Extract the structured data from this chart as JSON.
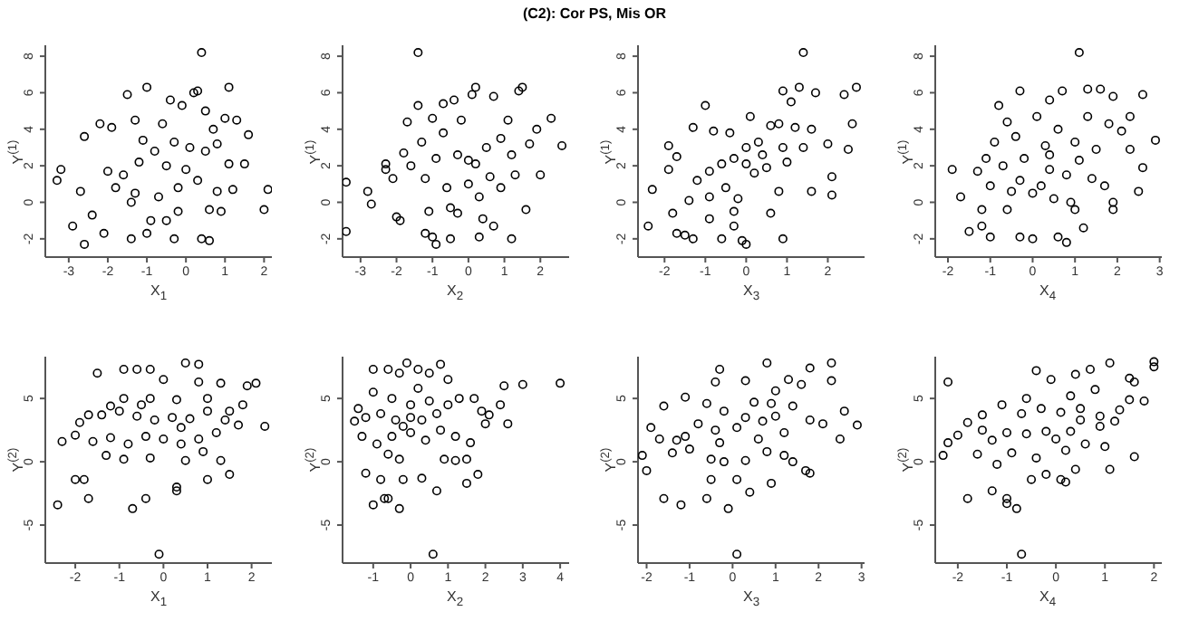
{
  "chart_data": [
    {
      "type": "scatter",
      "xlabel": "X$_{1}$",
      "ylabel": "Y$^{(1)}$",
      "color": "#000000",
      "marker": "circle",
      "xlim": [
        -3.6,
        2.2
      ],
      "xticks": [
        -3,
        -2,
        -1,
        0,
        1,
        2
      ],
      "ylim": [
        -3,
        8.6
      ],
      "yticks": [
        -2,
        0,
        2,
        4,
        6,
        8
      ],
      "x": [
        0.4,
        -1.5,
        -1.0,
        1.1,
        0.2,
        0.3,
        -0.4,
        -0.1,
        -2.2,
        -2.6,
        -1.9,
        -3.2,
        -3.3,
        -2.7,
        -2.9,
        -2.4,
        -2.6,
        -2.1,
        -1.4,
        -1.0,
        -0.3,
        0.4,
        0.6,
        2.0,
        2.1,
        1.6,
        1.5,
        1.0,
        0.8,
        0.5,
        0.1,
        -0.3,
        -0.8,
        -1.2,
        -1.6,
        -2.0,
        -1.8,
        -1.3,
        -0.7,
        -0.2,
        0.3,
        0.8,
        1.2,
        0.6,
        -0.5,
        -0.9,
        -0.6,
        0.7,
        -1.1,
        0.0,
        -0.5,
        1.1,
        0.9,
        -1.4,
        -0.2,
        0.5,
        -1.3,
        1.3
      ],
      "values": [
        8.2,
        5.9,
        6.3,
        6.3,
        6.0,
        6.1,
        5.6,
        5.3,
        4.3,
        3.6,
        4.1,
        1.8,
        1.2,
        0.6,
        -1.3,
        -0.7,
        -2.3,
        -1.7,
        -2.0,
        -1.7,
        -2.0,
        -2.0,
        -2.1,
        -0.4,
        0.7,
        3.7,
        2.1,
        4.6,
        3.2,
        2.8,
        3.0,
        3.3,
        2.8,
        2.2,
        1.5,
        1.7,
        0.8,
        0.5,
        0.3,
        0.8,
        1.2,
        0.6,
        0.7,
        -0.4,
        -1.0,
        -1.0,
        4.3,
        4.0,
        3.4,
        1.8,
        2.0,
        2.1,
        -0.5,
        0.0,
        -0.5,
        5.0,
        4.5,
        4.5
      ]
    },
    {
      "type": "scatter",
      "title": "(C2): Cor PS, Mis OR",
      "xlabel": "X$_{2}$",
      "ylabel": "Y$^{(1)}$",
      "color": "#000000",
      "marker": "circle",
      "xlim": [
        -3.5,
        2.8
      ],
      "xticks": [
        -3,
        -2,
        -1,
        0,
        1,
        2
      ],
      "ylim": [
        -3,
        8.6
      ],
      "yticks": [
        -2,
        0,
        2,
        4,
        6,
        8
      ],
      "x": [
        -1.4,
        -3.4,
        -3.4,
        -2.8,
        -2.7,
        -2.3,
        -2.3,
        -2.0,
        -1.9,
        -1.7,
        -1.4,
        -1.2,
        -1.0,
        -0.9,
        -0.5,
        0.3,
        1.2,
        1.6,
        2.0,
        2.3,
        2.6,
        1.5,
        1.4,
        0.2,
        0.1,
        0.7,
        -0.7,
        -0.4,
        -1.0,
        -0.2,
        1.1,
        1.9,
        1.7,
        0.5,
        -0.3,
        -0.9,
        -1.6,
        -1.2,
        -0.6,
        0.0,
        0.6,
        1.3,
        0.9,
        0.3,
        -0.5,
        -1.1,
        0.7,
        0.4,
        -1.3,
        0.9,
        0.0,
        -0.7,
        1.2,
        -1.8,
        -2.1,
        0.2,
        -0.3
      ],
      "values": [
        8.2,
        1.1,
        -1.6,
        0.6,
        -0.1,
        1.8,
        2.1,
        -0.8,
        -1.0,
        4.4,
        5.3,
        -1.7,
        -1.9,
        -2.3,
        -2.0,
        -1.9,
        -2.0,
        -0.4,
        1.5,
        4.6,
        3.1,
        6.3,
        6.1,
        6.3,
        5.9,
        5.8,
        5.4,
        5.6,
        4.6,
        4.5,
        4.5,
        4.0,
        3.2,
        3.0,
        2.6,
        2.4,
        2.0,
        1.3,
        0.8,
        1.0,
        1.4,
        1.5,
        0.8,
        0.3,
        -0.3,
        -0.5,
        -1.3,
        -0.9,
        3.3,
        3.5,
        2.3,
        3.8,
        2.6,
        2.7,
        1.3,
        2.1,
        -0.6
      ]
    },
    {
      "type": "scatter",
      "xlabel": "X$_{3}$",
      "ylabel": "Y$^{(1)}$",
      "color": "#000000",
      "marker": "circle",
      "xlim": [
        -2.65,
        2.9
      ],
      "xticks": [
        -2,
        -1,
        0,
        1,
        2
      ],
      "ylim": [
        -3,
        8.6
      ],
      "yticks": [
        -2,
        0,
        2,
        4,
        6,
        8
      ],
      "x": [
        1.4,
        -2.4,
        -2.3,
        -1.7,
        -1.8,
        -1.5,
        -1.3,
        -0.9,
        -0.6,
        -0.3,
        0.0,
        -0.1,
        0.9,
        -1.0,
        -1.3,
        -1.9,
        -1.7,
        -1.9,
        0.9,
        1.3,
        1.7,
        2.4,
        2.7,
        2.6,
        2.5,
        2.0,
        2.1,
        2.1,
        1.6,
        0.8,
        0.6,
        1.1,
        1.2,
        1.6,
        0.8,
        0.6,
        0.3,
        0.0,
        -0.3,
        -0.6,
        -0.9,
        -1.2,
        -0.9,
        -0.5,
        -0.2,
        0.2,
        0.5,
        1.0,
        1.4,
        -0.4,
        -0.8,
        0.1,
        -1.4,
        -0.3,
        0.4,
        0.9,
        0.0
      ],
      "values": [
        8.2,
        -1.3,
        0.7,
        -1.7,
        -0.6,
        -1.8,
        -2.0,
        -0.9,
        -2.0,
        -1.3,
        -2.3,
        -2.1,
        -2.0,
        5.3,
        4.1,
        3.1,
        2.5,
        1.8,
        6.1,
        6.3,
        6.0,
        5.9,
        6.3,
        4.3,
        2.9,
        3.2,
        1.4,
        0.4,
        0.6,
        0.6,
        -0.6,
        5.5,
        4.1,
        4.0,
        4.3,
        4.2,
        3.3,
        3.0,
        2.4,
        2.1,
        1.7,
        1.2,
        0.3,
        0.8,
        0.2,
        1.6,
        1.9,
        2.2,
        3.0,
        3.8,
        3.9,
        4.7,
        0.1,
        -0.5,
        2.6,
        3.0,
        2.1
      ]
    },
    {
      "type": "scatter",
      "xlabel": "X$_{4}$",
      "ylabel": "Y$^{(1)}$",
      "color": "#000000",
      "marker": "circle",
      "xlim": [
        -2.3,
        3.05
      ],
      "xticks": [
        -2,
        -1,
        0,
        1,
        2,
        3
      ],
      "ylim": [
        -3,
        8.6
      ],
      "yticks": [
        -2,
        0,
        2,
        4,
        6,
        8
      ],
      "x": [
        1.1,
        -1.9,
        -1.7,
        -1.5,
        -1.2,
        -1.0,
        -0.3,
        0.0,
        0.6,
        0.8,
        1.2,
        -0.3,
        -0.8,
        0.4,
        0.7,
        1.3,
        1.6,
        1.9,
        2.6,
        2.9,
        2.6,
        2.5,
        1.9,
        1.9,
        1.0,
        0.5,
        0.0,
        -0.5,
        -1.0,
        -1.3,
        -1.2,
        -0.6,
        -0.9,
        -0.6,
        0.1,
        0.6,
        1.3,
        1.8,
        2.3,
        2.1,
        2.3,
        1.5,
        1.0,
        0.3,
        -0.2,
        0.4,
        0.8,
        1.4,
        0.2,
        -0.3,
        -0.7,
        -1.1,
        1.7,
        0.9,
        0.4,
        -0.4,
        1.1
      ],
      "values": [
        8.2,
        1.8,
        0.3,
        -1.6,
        -1.3,
        -1.9,
        -1.9,
        -2.0,
        -1.9,
        -2.2,
        -1.4,
        6.1,
        5.3,
        5.6,
        6.1,
        6.2,
        6.2,
        5.8,
        5.9,
        3.4,
        1.9,
        0.6,
        -0.4,
        0.0,
        -0.4,
        0.2,
        0.5,
        0.6,
        0.9,
        1.7,
        -0.4,
        -0.4,
        3.3,
        4.4,
        4.7,
        4.0,
        4.7,
        4.3,
        4.7,
        3.9,
        2.9,
        2.9,
        3.3,
        3.1,
        2.4,
        1.8,
        1.5,
        1.3,
        0.9,
        1.2,
        2.0,
        2.4,
        0.9,
        0.0,
        2.6,
        3.6,
        2.3
      ]
    },
    {
      "type": "scatter",
      "xlabel": "X$_{1}$",
      "ylabel": "Y$^{(2)}$",
      "color": "#000000",
      "marker": "circle",
      "xlim": [
        -2.68,
        2.46
      ],
      "xticks": [
        -2,
        -1,
        0,
        1,
        2
      ],
      "ylim": [
        -8,
        8.3
      ],
      "yticks": [
        -5,
        0,
        5
      ],
      "x": [
        -0.1,
        -0.7,
        -2.4,
        -1.7,
        -0.4,
        0.3,
        0.3,
        -2.0,
        -1.8,
        1.5,
        1.0,
        -2.3,
        -1.5,
        -0.9,
        -0.6,
        -0.3,
        0.5,
        0.8,
        0.0,
        0.8,
        1.3,
        1.9,
        2.1,
        2.3,
        1.8,
        1.7,
        1.4,
        1.0,
        0.6,
        0.2,
        -0.2,
        -0.6,
        -1.0,
        -1.4,
        -1.7,
        -1.9,
        -2.0,
        -1.6,
        -1.2,
        -0.8,
        -0.4,
        0.0,
        0.4,
        0.8,
        1.2,
        0.9,
        0.5,
        -0.3,
        -0.9,
        -1.3,
        1.3,
        -0.9,
        -0.3,
        0.3,
        1.0,
        -1.2,
        0.4,
        -0.5,
        1.5
      ],
      "values": [
        -7.3,
        -3.7,
        -3.4,
        -2.9,
        -2.9,
        -2.0,
        -2.3,
        -1.4,
        -1.4,
        -1.0,
        -1.4,
        1.6,
        7.0,
        7.3,
        7.3,
        7.3,
        7.8,
        7.7,
        6.5,
        6.3,
        6.2,
        6.0,
        6.2,
        2.8,
        4.5,
        2.9,
        3.3,
        4.0,
        3.4,
        3.5,
        3.3,
        3.6,
        4.0,
        3.7,
        3.7,
        3.1,
        2.1,
        1.6,
        1.9,
        1.4,
        2.0,
        1.8,
        1.4,
        1.8,
        2.3,
        0.8,
        0.1,
        0.3,
        0.2,
        0.5,
        0.1,
        5.0,
        5.0,
        4.9,
        5.0,
        4.4,
        2.7,
        4.5,
        4.0
      ]
    },
    {
      "type": "scatter",
      "xlabel": "X$_{2}$",
      "ylabel": "Y$^{(2)}$",
      "color": "#000000",
      "marker": "circle",
      "xlim": [
        -1.82,
        4.24
      ],
      "xticks": [
        -1,
        0,
        1,
        2,
        3,
        4
      ],
      "ylim": [
        -8,
        8.3
      ],
      "yticks": [
        -5,
        0,
        5
      ],
      "x": [
        0.6,
        -1.0,
        -0.6,
        -0.7,
        -0.3,
        0.7,
        1.5,
        1.8,
        -1.2,
        -0.8,
        -0.2,
        0.3,
        -1.0,
        -0.6,
        -0.3,
        -0.1,
        0.2,
        0.5,
        0.8,
        1.0,
        2.6,
        3.0,
        4.0,
        2.5,
        2.4,
        2.1,
        1.9,
        1.7,
        1.3,
        1.0,
        0.7,
        0.3,
        0.0,
        -0.4,
        -0.8,
        -1.2,
        -1.5,
        -1.4,
        -1.0,
        -0.5,
        0.0,
        0.5,
        -1.3,
        -0.9,
        -0.5,
        0.0,
        0.4,
        0.8,
        1.2,
        1.6,
        1.2,
        0.9,
        -0.3,
        -0.6,
        1.5,
        2.0,
        0.2,
        -0.2
      ],
      "values": [
        -7.3,
        -3.4,
        -2.9,
        -2.9,
        -3.7,
        -2.3,
        -1.7,
        -1.0,
        -0.9,
        -1.4,
        -1.4,
        -1.3,
        7.3,
        7.3,
        7.0,
        7.8,
        7.3,
        7.0,
        7.7,
        6.5,
        3.0,
        6.1,
        6.2,
        6.0,
        4.5,
        3.7,
        4.0,
        5.0,
        5.0,
        4.5,
        3.8,
        3.3,
        3.5,
        3.3,
        3.8,
        3.5,
        3.2,
        4.2,
        5.5,
        5.0,
        4.5,
        4.8,
        2.0,
        1.4,
        2.0,
        2.3,
        1.7,
        2.5,
        2.0,
        1.5,
        0.1,
        0.2,
        0.2,
        0.6,
        0.2,
        3.0,
        5.8,
        2.8
      ]
    },
    {
      "type": "scatter",
      "xlabel": "X$_{3}$",
      "ylabel": "Y$^{(2)}$",
      "color": "#000000",
      "marker": "circle",
      "xlim": [
        -2.2,
        3.07
      ],
      "xticks": [
        -2,
        -1,
        0,
        1,
        2,
        3
      ],
      "ylim": [
        -8,
        8.3
      ],
      "yticks": [
        -5,
        0,
        5
      ],
      "x": [
        0.1,
        -0.1,
        -1.6,
        -1.2,
        -0.6,
        0.4,
        0.9,
        -0.5,
        0.1,
        -1.4,
        -2.1,
        -2.0,
        -0.3,
        0.8,
        0.3,
        -0.4,
        1.0,
        1.3,
        1.6,
        1.8,
        2.3,
        2.3,
        2.6,
        2.9,
        2.5,
        1.7,
        1.8,
        1.4,
        1.2,
        0.8,
        0.3,
        -0.2,
        -0.5,
        -1.0,
        -1.3,
        -1.7,
        -1.9,
        -1.6,
        -1.1,
        -0.6,
        -0.2,
        0.3,
        0.7,
        1.0,
        1.4,
        1.8,
        2.1,
        0.5,
        0.1,
        -0.4,
        -0.8,
        0.6,
        1.2,
        -1.1,
        0.9,
        -0.3
      ],
      "values": [
        -7.3,
        -3.7,
        -2.9,
        -3.4,
        -2.9,
        -2.4,
        -1.7,
        -1.4,
        -1.4,
        0.7,
        0.5,
        -0.7,
        7.3,
        7.8,
        6.4,
        6.3,
        5.6,
        6.5,
        6.1,
        7.4,
        7.8,
        6.4,
        4.0,
        2.9,
        1.8,
        -0.7,
        -0.9,
        0.0,
        0.5,
        0.8,
        0.1,
        0.0,
        0.2,
        1.0,
        1.7,
        1.8,
        2.7,
        4.4,
        5.1,
        4.6,
        4.0,
        3.5,
        3.2,
        3.6,
        4.4,
        3.3,
        3.0,
        4.7,
        2.7,
        2.5,
        3.0,
        1.8,
        2.3,
        2.0,
        4.6,
        1.5
      ]
    },
    {
      "type": "scatter",
      "xlabel": "X$_{4}$",
      "ylabel": "Y$^{(2)}$",
      "color": "#000000",
      "marker": "circle",
      "xlim": [
        -2.46,
        2.16
      ],
      "xticks": [
        -2,
        -1,
        0,
        1,
        2
      ],
      "ylim": [
        -8,
        8.3
      ],
      "yticks": [
        -5,
        0,
        5
      ],
      "x": [
        -0.7,
        -0.8,
        -1.0,
        -1.0,
        -1.8,
        -1.3,
        -0.5,
        0.1,
        0.2,
        -0.2,
        0.4,
        1.1,
        -2.3,
        -2.2,
        -2.2,
        -0.4,
        -0.1,
        0.4,
        0.7,
        1.1,
        1.5,
        1.6,
        2.0,
        2.0,
        1.8,
        1.5,
        1.6,
        1.2,
        0.9,
        0.5,
        0.3,
        0.0,
        -0.2,
        -0.6,
        -1.0,
        -1.3,
        -1.6,
        -2.0,
        -1.8,
        -1.5,
        -1.1,
        -0.7,
        -0.3,
        0.1,
        0.5,
        0.9,
        1.3,
        0.6,
        0.2,
        -0.4,
        -0.9,
        -1.2,
        1.0,
        -0.6,
        0.3,
        -1.5,
        0.8
      ],
      "values": [
        -7.3,
        -3.7,
        -3.3,
        -2.9,
        -2.9,
        -2.3,
        -1.4,
        -1.4,
        -1.6,
        -1.0,
        -0.6,
        -0.6,
        0.5,
        1.5,
        6.3,
        7.2,
        6.5,
        6.9,
        7.3,
        7.8,
        6.6,
        6.3,
        7.5,
        7.9,
        4.8,
        4.9,
        0.4,
        3.2,
        2.8,
        3.3,
        2.4,
        1.8,
        2.4,
        2.2,
        2.3,
        1.7,
        0.6,
        2.1,
        3.1,
        3.7,
        4.5,
        3.8,
        4.2,
        3.9,
        4.2,
        3.6,
        4.1,
        1.4,
        0.9,
        0.3,
        0.7,
        -0.2,
        1.2,
        5.0,
        5.2,
        2.5,
        5.7
      ]
    }
  ]
}
